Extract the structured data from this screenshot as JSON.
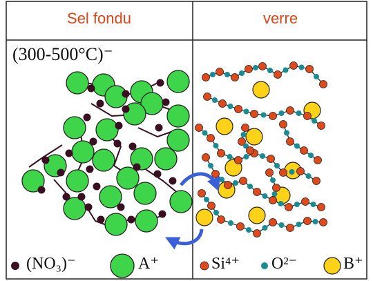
{
  "header": {
    "left_title": "Sel fondu",
    "right_title": "verre"
  },
  "annotation": {
    "temperature": "(300-500°C)⁻"
  },
  "legend": [
    {
      "label": "(NO₃)⁻",
      "icon": "nitrate-dot-icon"
    },
    {
      "label": "A⁺",
      "icon": "alkali-cation-icon"
    },
    {
      "label": "Si⁴⁺",
      "icon": "silicon-dot-icon"
    },
    {
      "label": "O²⁻",
      "icon": "oxygen-dot-icon"
    },
    {
      "label": "B⁺",
      "icon": "boron-cation-icon"
    }
  ],
  "colors": {
    "header_text": "#d9461a",
    "green_cation": "#3ed54a",
    "nitrate": "#3a0f22",
    "silicon": "#de4a1c",
    "oxygen": "#1a8a93",
    "boron": "#ffd21a",
    "arrow": "#3a5fd8"
  }
}
